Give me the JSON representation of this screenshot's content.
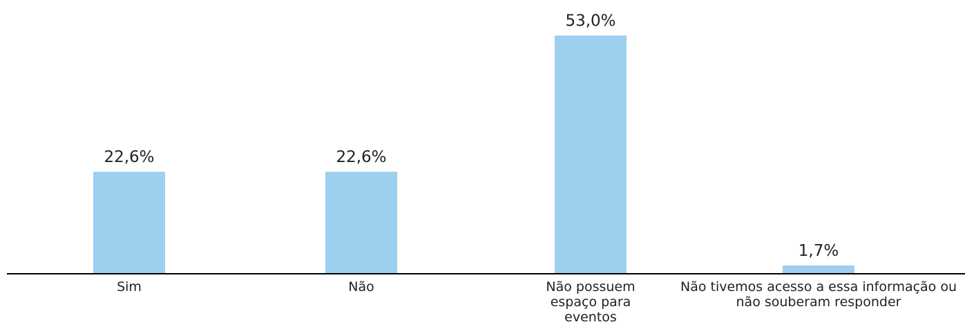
{
  "chart_data": {
    "type": "bar",
    "categories": [
      "Sim",
      "Não",
      "Não possuem espaço para eventos",
      "Não tivemos acesso a essa informação ou não souberam responder"
    ],
    "values": [
      22.6,
      22.6,
      53.0,
      1.7
    ],
    "value_labels": [
      "22,6%",
      "22,6%",
      "53,0%",
      "1,7%"
    ],
    "color": "#9dcfee",
    "ylim": [
      0,
      60
    ]
  }
}
